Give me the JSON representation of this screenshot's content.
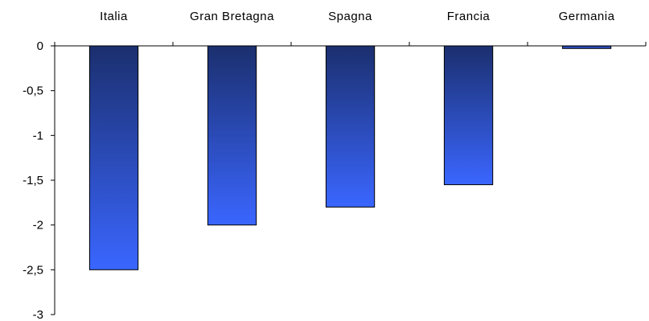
{
  "chart_data": {
    "type": "bar",
    "title": "",
    "xlabel": "",
    "ylabel": "",
    "categories": [
      "Italia",
      "Gran Bretagna",
      "Spagna",
      "Francia",
      "Germania"
    ],
    "values": [
      -2.5,
      -2.0,
      -1.8,
      -1.55,
      -0.03
    ],
    "ylim": [
      -3,
      0
    ],
    "yticks": [
      0,
      -0.5,
      -1,
      -1.5,
      -2,
      -2.5,
      -3
    ],
    "ytick_labels": [
      "0",
      "-0,5",
      "-1",
      "-1,5",
      "-2",
      "-2,5",
      "-3"
    ],
    "category_axis_position": "top",
    "grid": false,
    "legend": "none",
    "colors": {
      "bar_top": "#1b2f6e",
      "bar_bottom": "#3a66ff",
      "bar_stroke": "#000000",
      "axis": "#000000"
    }
  }
}
